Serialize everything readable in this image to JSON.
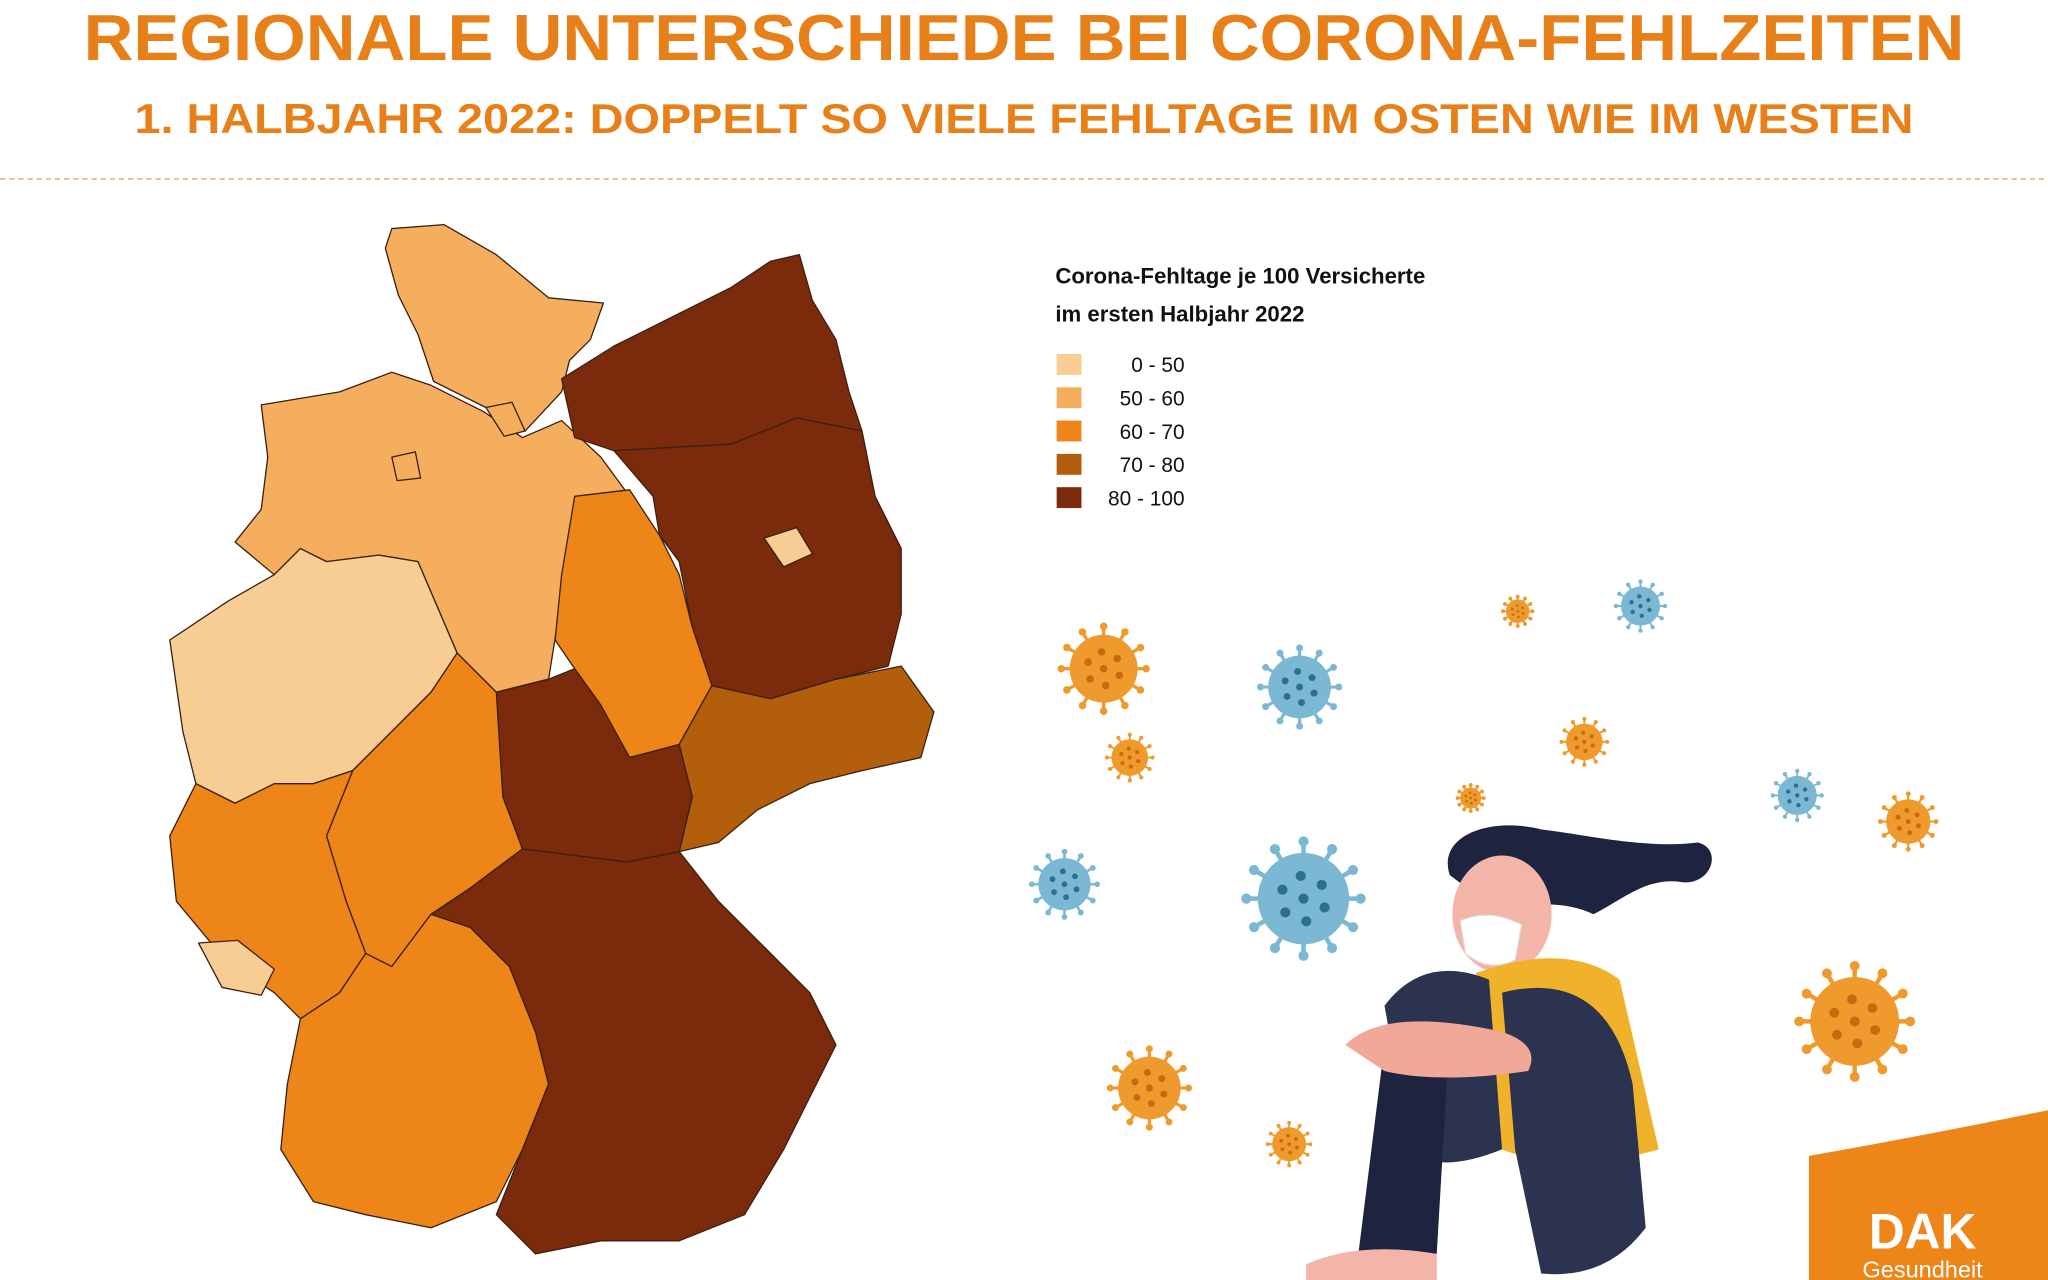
{
  "header": {
    "title": "REGIONALE UNTERSCHIEDE BEI CORONA-FEHLZEITEN",
    "subtitle": "1. HALBJAHR 2022: DOPPELT SO VIELE FEHLTAGE IM OSTEN WIE IM WESTEN"
  },
  "legend": {
    "title": [
      "Corona-Fehltage je 100 Versicherte",
      "im ersten Halbjahr 2022"
    ],
    "items": [
      {
        "label": "0 - 50",
        "color": "#f7cd93"
      },
      {
        "label": "50 - 60",
        "color": "#f5ae5e"
      },
      {
        "label": "60 - 70",
        "color": "#ee8519"
      },
      {
        "label": "70 - 80",
        "color": "#b25e0c"
      },
      {
        "label": "80 - 100",
        "color": "#7b2b0c"
      }
    ]
  },
  "logo": {
    "name": "DAK",
    "tagline": "Gesundheit"
  }
}
